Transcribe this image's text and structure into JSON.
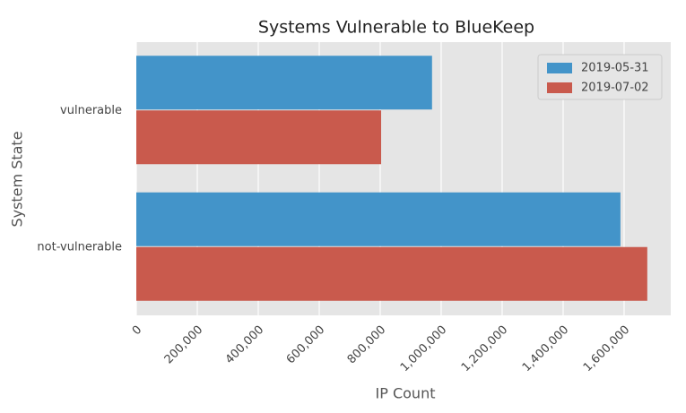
{
  "chart_data": {
    "type": "barh",
    "title": "Systems Vulnerable to BlueKeep",
    "xlabel": "IP Count",
    "ylabel": "System State",
    "categories": [
      "vulnerable",
      "not-vulnerable"
    ],
    "series": [
      {
        "name": "2019-05-31",
        "color": "#4394c9",
        "values": [
          970000,
          1588000
        ]
      },
      {
        "name": "2019-07-02",
        "color": "#c95a4d",
        "values": [
          803000,
          1676000
        ]
      }
    ],
    "xlim": [
      0,
      1753000
    ],
    "xticks": [
      0,
      {
        "value": 200000,
        "label": "200,000"
      },
      {
        "value": 400000,
        "label": "400,000"
      },
      {
        "value": 600000,
        "label": "600,000"
      },
      {
        "value": 800000,
        "label": "800,000"
      },
      {
        "value": 1000000,
        "label": "1,000,000"
      },
      {
        "value": 1200000,
        "label": "1,200,000"
      },
      {
        "value": 1400000,
        "label": "1,400,000"
      },
      {
        "value": 1600000,
        "label": "1,600,000"
      }
    ],
    "grid": true,
    "legend": "upper right"
  }
}
